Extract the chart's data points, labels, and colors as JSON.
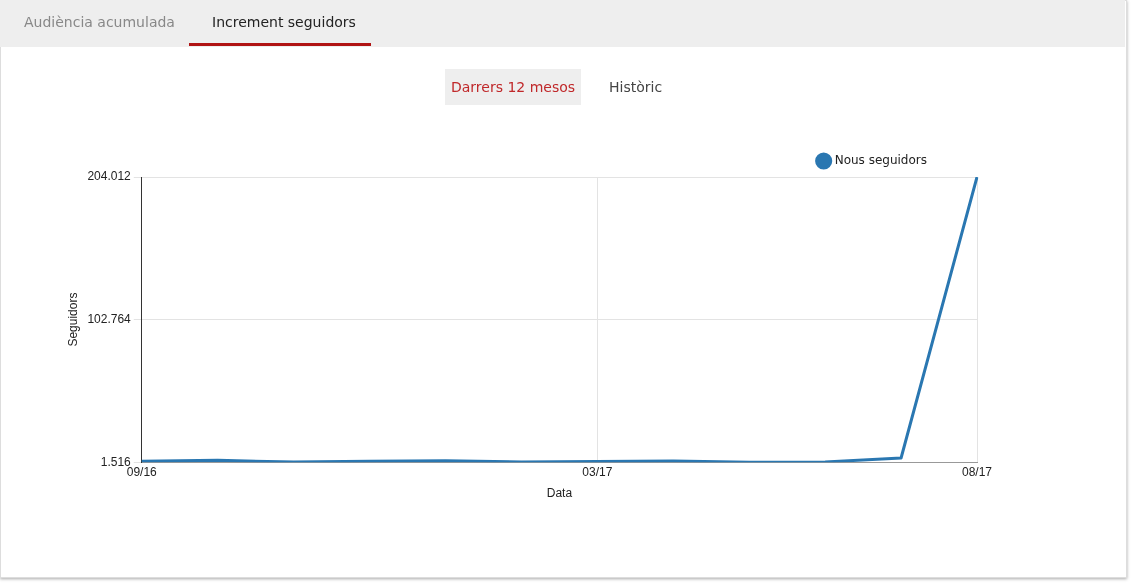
{
  "chart_data": {
    "type": "line",
    "xlabel": "Data",
    "ylabel": "Seguidors",
    "annotations": [
      "Audiència acumulada",
      "Increment seguidors",
      "Darrers 12 mesos",
      "Històric"
    ],
    "categories": [
      "09/16",
      null,
      null,
      null,
      null,
      null,
      "03/17",
      null,
      null,
      null,
      null,
      "08/17"
    ],
    "series": [
      {
        "name": "Nous seguidors",
        "color": "#2a77b1",
        "values": [
          2200,
          2900,
          1600,
          2200,
          2600,
          1700,
          2100,
          2300,
          1516,
          1700,
          4500,
          204012
        ]
      }
    ],
    "ylim": [
      1516,
      204012
    ],
    "yticks": [
      {
        "value": 1516,
        "label": "1.516"
      },
      {
        "value": 102764,
        "label": "102.764"
      },
      {
        "value": 204012,
        "label": "204.012"
      }
    ],
    "grid": true,
    "legend": "top right",
    "marker": "none",
    "line_style": "solid"
  }
}
